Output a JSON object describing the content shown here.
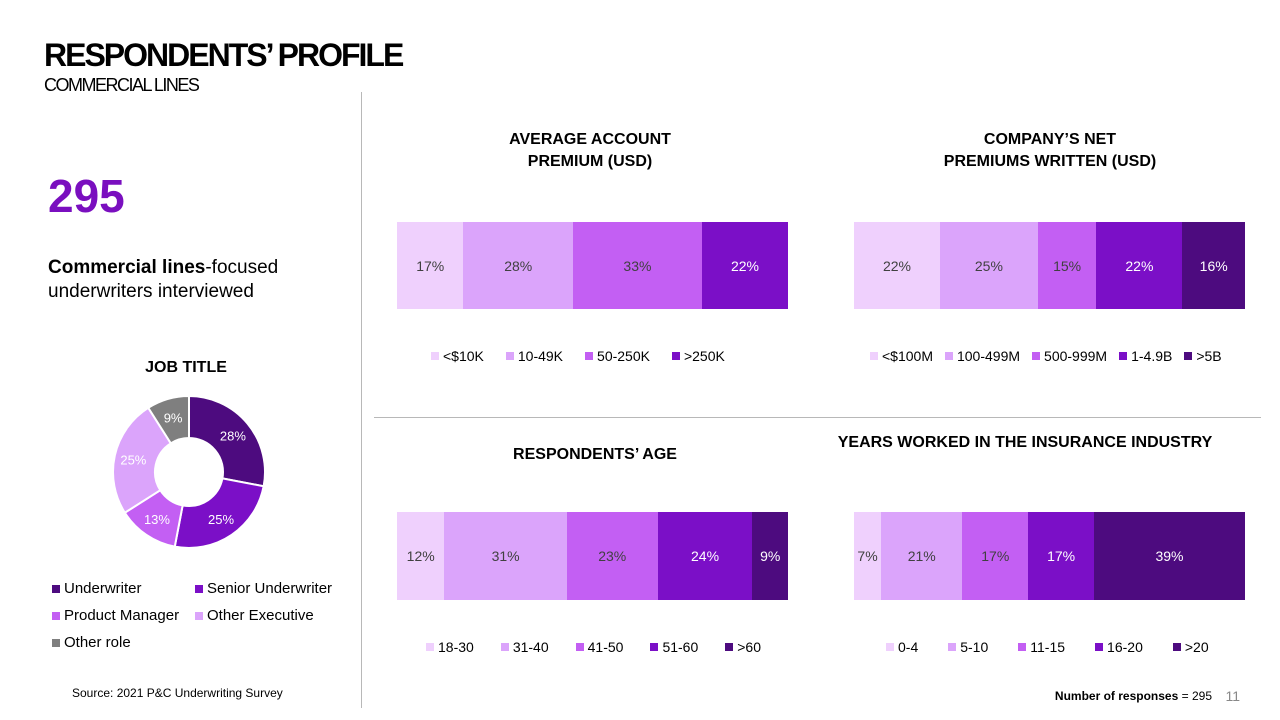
{
  "header": {
    "title": "RESPONDENTS’ PROFILE",
    "subtitle": "COMMERCIAL LINES"
  },
  "summary": {
    "big_number": "295",
    "desc_bold": "Commercial lines",
    "desc_rest": "-focused underwriters interviewed"
  },
  "footer": {
    "source": "Source: 2021 P&C Underwriting Survey",
    "responses_label": "Number of responses",
    "responses_value": "= 295",
    "page_number": "11"
  },
  "chart_data": [
    {
      "id": "job_title",
      "type": "pie",
      "title": "JOB TITLE",
      "categories": [
        "Underwriter",
        "Senior Underwriter",
        "Product Manager",
        "Other Executive",
        "Other role"
      ],
      "values": [
        28,
        25,
        13,
        25,
        9
      ],
      "labels": [
        "28%",
        "25%",
        "13%",
        "25%",
        "9%"
      ],
      "colors": [
        "#4d0b7f",
        "#7b0fc7",
        "#c35ff3",
        "#dba4fb",
        "#7f7f7f"
      ],
      "label_colors": [
        "#ffffff",
        "#ffffff",
        "#ffffff",
        "#ffffff",
        "#ffffff"
      ]
    },
    {
      "id": "avg_premium",
      "type": "bar",
      "title_line1": "AVERAGE ACCOUNT",
      "title_line2": "PREMIUM (USD)",
      "categories": [
        "<$10K",
        "10-49K",
        "50-250K",
        ">250K"
      ],
      "values": [
        17,
        28,
        33,
        22
      ],
      "labels": [
        "17%",
        "28%",
        "33%",
        "22%"
      ],
      "colors": [
        "#efd0fd",
        "#dba4fb",
        "#c35ff3",
        "#7b0fc7"
      ],
      "label_colors": [
        "#404040",
        "#404040",
        "#404040",
        "#ffffff"
      ]
    },
    {
      "id": "net_premiums",
      "type": "bar",
      "title_line1": "COMPANY’S NET",
      "title_line2": "PREMIUMS WRITTEN (USD)",
      "categories": [
        "<$100M",
        "100-499M",
        "500-999M",
        "1-4.9B",
        ">5B"
      ],
      "values": [
        22,
        25,
        15,
        22,
        16
      ],
      "labels": [
        "22%",
        "25%",
        "15%",
        "22%",
        "16%"
      ],
      "colors": [
        "#efd0fd",
        "#dba4fb",
        "#c35ff3",
        "#7b0fc7",
        "#4d0b7f"
      ],
      "label_colors": [
        "#404040",
        "#404040",
        "#404040",
        "#ffffff",
        "#ffffff"
      ]
    },
    {
      "id": "age",
      "type": "bar",
      "title": "RESPONDENTS’ AGE",
      "categories": [
        "18-30",
        "31-40",
        "41-50",
        "51-60",
        ">60"
      ],
      "values": [
        12,
        31,
        23,
        24,
        9
      ],
      "labels": [
        "12%",
        "31%",
        "23%",
        "24%",
        "9%"
      ],
      "colors": [
        "#efd0fd",
        "#dba4fb",
        "#c35ff3",
        "#7b0fc7",
        "#4d0b7f"
      ],
      "label_colors": [
        "#404040",
        "#404040",
        "#404040",
        "#ffffff",
        "#ffffff"
      ]
    },
    {
      "id": "years",
      "type": "bar",
      "title": "YEARS WORKED IN THE INSURANCE INDUSTRY",
      "categories": [
        "0-4",
        "5-10",
        "11-15",
        "16-20",
        ">20"
      ],
      "values": [
        7,
        21,
        17,
        17,
        39
      ],
      "labels": [
        "7%",
        "21%",
        "17%",
        "17%",
        "39%"
      ],
      "colors": [
        "#efd0fd",
        "#dba4fb",
        "#c35ff3",
        "#7b0fc7",
        "#4d0b7f"
      ],
      "label_colors": [
        "#404040",
        "#404040",
        "#404040",
        "#ffffff",
        "#ffffff"
      ]
    }
  ]
}
